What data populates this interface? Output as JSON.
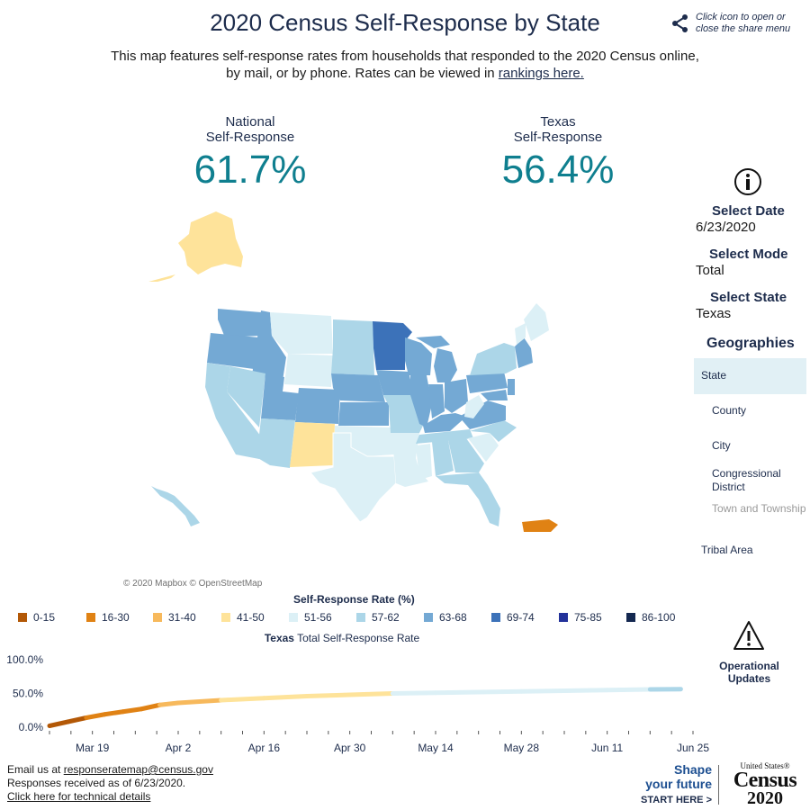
{
  "header": {
    "title": "2020 Census Self-Response by State",
    "subtitle_text": "This map features self-response rates from households that responded to the 2020 Census online, by mail, or by phone. Rates can be viewed in ",
    "rankings_link": "rankings here.",
    "share_hint": "Click icon to open or close the share menu",
    "share_icon": "share-icon"
  },
  "kpis": {
    "national_label_1": "National",
    "national_label_2": "Self-Response",
    "national_value": "61.7%",
    "state_label_1": "Texas",
    "state_label_2": "Self-Response",
    "state_value": "56.4%"
  },
  "map": {
    "credit": "© 2020 Mapbox © OpenStreetMap",
    "highlighted_state": "Texas"
  },
  "controls": {
    "info_icon": "info-icon",
    "date_label": "Select Date",
    "date_value": "6/23/2020",
    "mode_label": "Select Mode",
    "mode_value": "Total",
    "state_label": "Select State",
    "state_value": "Texas",
    "geographies_label": "Geographies",
    "geographies": [
      {
        "label": "State",
        "selected": true
      },
      {
        "label": "County"
      },
      {
        "label": "City"
      },
      {
        "label": "Congressional District"
      },
      {
        "label": "Town and Township",
        "disabled": true
      },
      {
        "label": "Tribal Area"
      }
    ]
  },
  "legend": {
    "title": "Self-Response Rate (%)",
    "items": [
      {
        "label": "0-15",
        "color": "#b35806"
      },
      {
        "label": "16-30",
        "color": "#e08214"
      },
      {
        "label": "31-40",
        "color": "#f7b95c"
      },
      {
        "label": "41-50",
        "color": "#fee39a"
      },
      {
        "label": "51-56",
        "color": "#dcf0f6"
      },
      {
        "label": "57-62",
        "color": "#acd6e8"
      },
      {
        "label": "63-68",
        "color": "#74a9d4"
      },
      {
        "label": "69-74",
        "color": "#3c72b9"
      },
      {
        "label": "75-85",
        "color": "#23329a"
      },
      {
        "label": "86-100",
        "color": "#142850"
      }
    ]
  },
  "chart_title": {
    "state": "Texas",
    "rest": "Total Self-Response Rate"
  },
  "chart_data": {
    "type": "line",
    "y_tick_labels": [
      "100.0%",
      "50.0%",
      "0.0%"
    ],
    "ylim": [
      0,
      100
    ],
    "x_tick_labels": [
      "Mar 19",
      "Apr 2",
      "Apr 16",
      "Apr 30",
      "May 14",
      "May 28",
      "Jun 11",
      "Jun 25"
    ],
    "x_range": [
      "2020-03-12",
      "2020-06-25"
    ],
    "series": [
      {
        "x": [
          "2020-03-12",
          "2020-03-15",
          "2020-03-18",
          "2020-03-21",
          "2020-03-24",
          "2020-03-27",
          "2020-03-30",
          "2020-04-02",
          "2020-04-09",
          "2020-04-16",
          "2020-04-23",
          "2020-04-30",
          "2020-05-07",
          "2020-05-14",
          "2020-05-21",
          "2020-05-28",
          "2020-06-04",
          "2020-06-11",
          "2020-06-18",
          "2020-06-23"
        ],
        "y": [
          2,
          8,
          14,
          19,
          23,
          27,
          33,
          36,
          40,
          43,
          46,
          48,
          50,
          51,
          52,
          53,
          54,
          55,
          56,
          56.4
        ]
      }
    ]
  },
  "operational_updates": {
    "icon": "warning-icon",
    "label_1": "Operational",
    "label_2": "Updates"
  },
  "footer": {
    "email_prefix": "Email us at ",
    "email": "responseratemap@census.gov",
    "received": "Responses received as of 6/23/2020.",
    "tech_link": "Click here for technical details"
  },
  "brand": {
    "shape_1": "Shape",
    "shape_2": "your future",
    "start_here": "START HERE >",
    "census_small": "United States®",
    "census_word": "Census",
    "census_year": "2020"
  }
}
